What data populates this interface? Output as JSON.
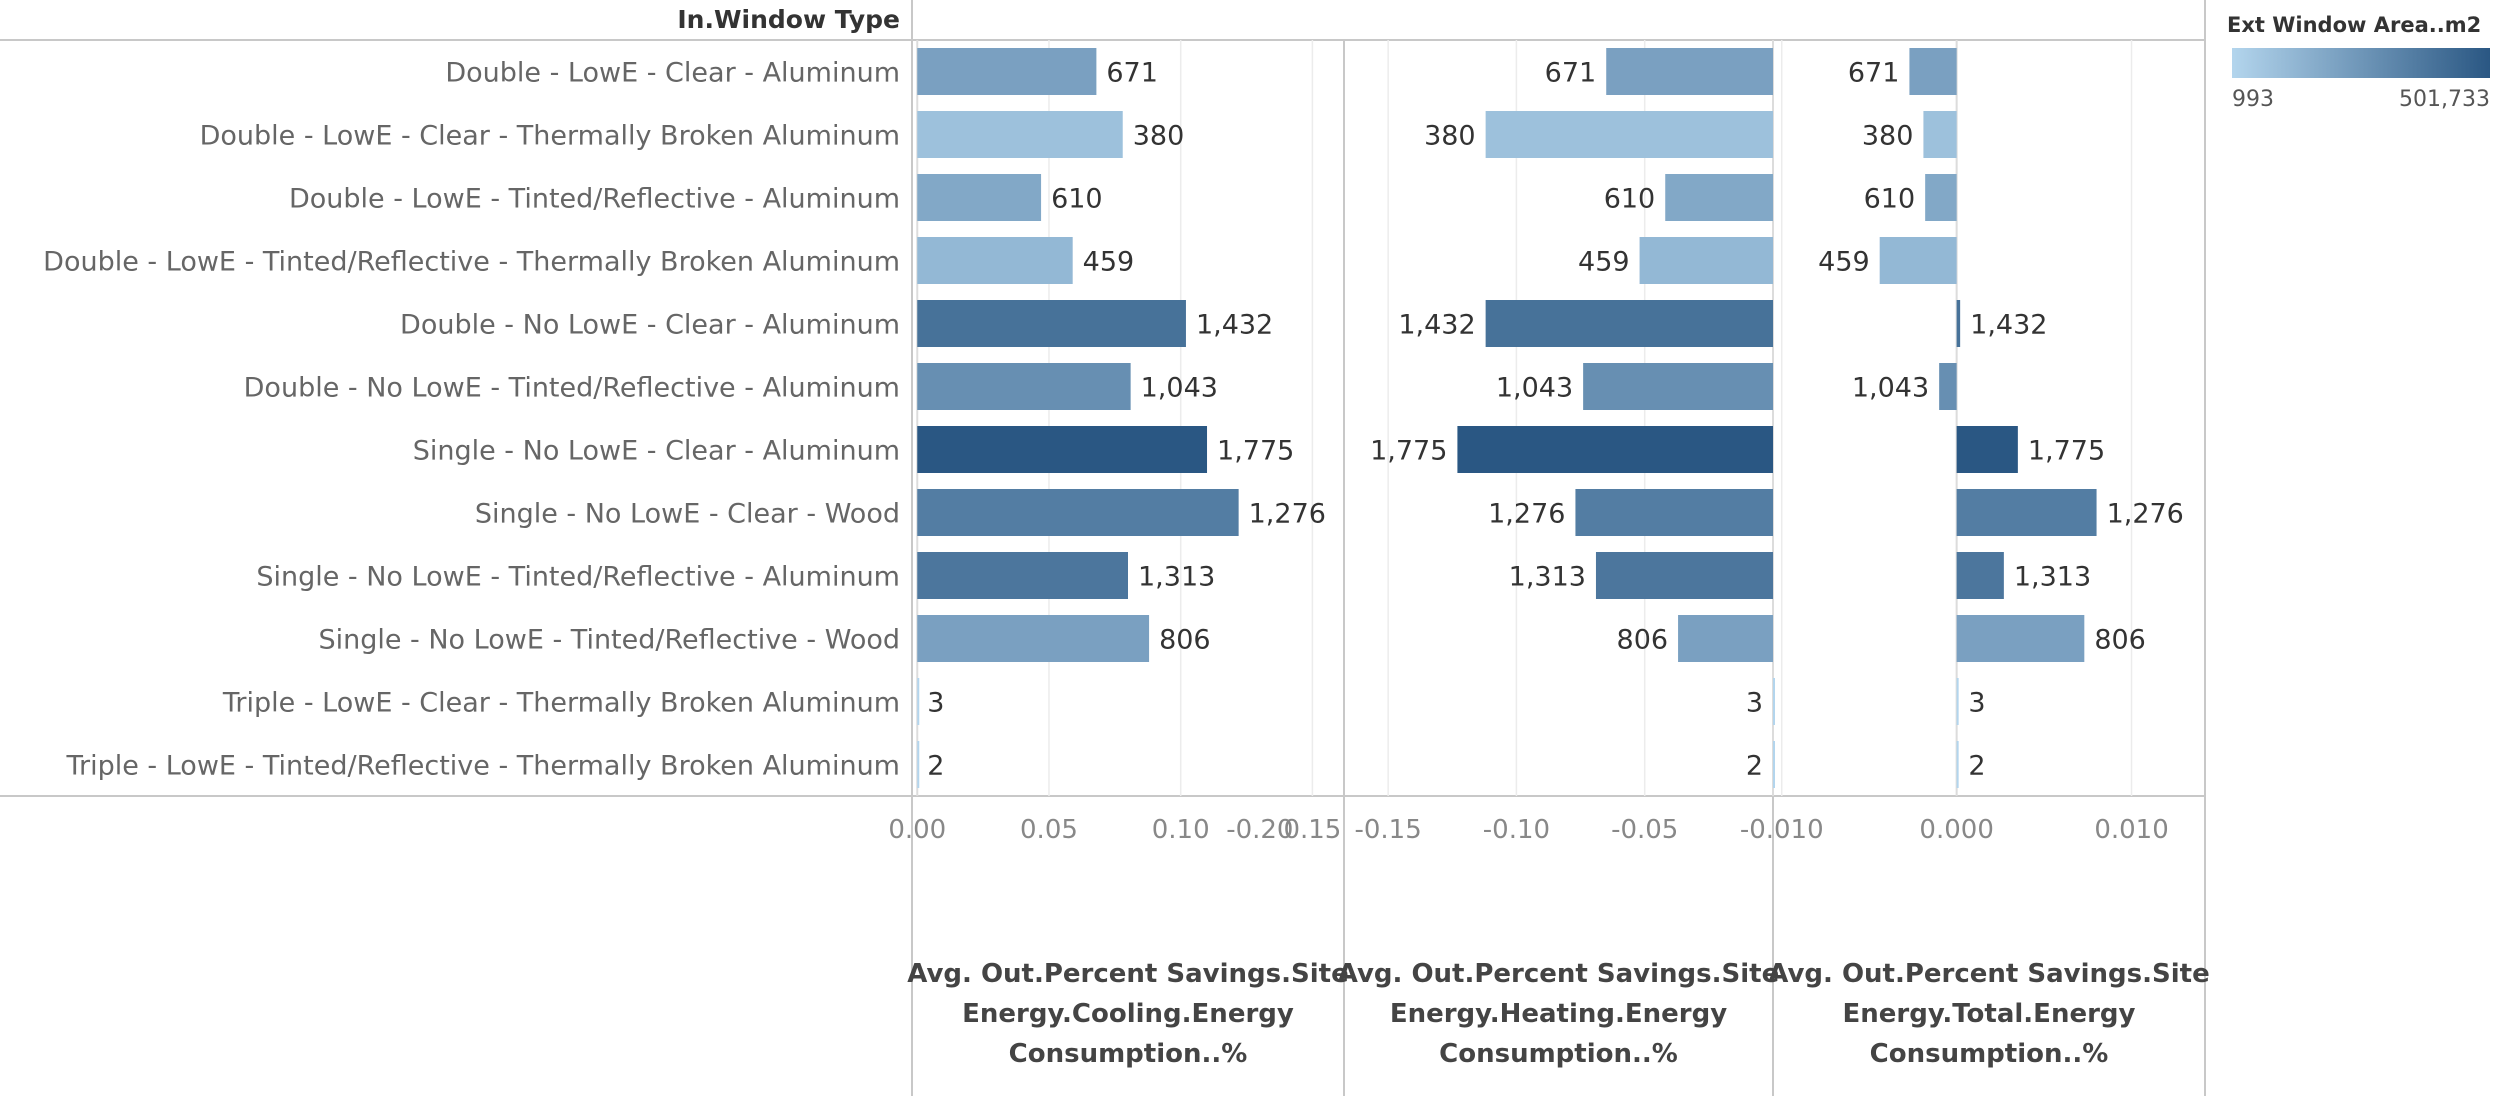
{
  "chart_data": {
    "type": "bar",
    "orientation": "horizontal",
    "row_header": "In.Window Type",
    "categories": [
      "Double - LowE - Clear - Aluminum",
      "Double - LowE - Clear - Thermally Broken Aluminum",
      "Double - LowE - Tinted/Reflective - Aluminum",
      "Double - LowE - Tinted/Reflective - Thermally Broken Aluminum",
      "Double - No LowE - Clear - Aluminum",
      "Double - No LowE - Tinted/Reflective - Aluminum",
      "Single - No LowE - Clear - Aluminum",
      "Single - No LowE - Clear - Wood",
      "Single - No LowE - Tinted/Reflective - Aluminum",
      "Single - No LowE - Tinted/Reflective - Wood",
      "Triple - LowE - Clear - Thermally Broken Aluminum",
      "Triple - LowE - Tinted/Reflective - Thermally Broken Aluminum"
    ],
    "labels": [
      "671",
      "380",
      "610",
      "459",
      "1,432",
      "1,043",
      "1,775",
      "1,276",
      "1,313",
      "806",
      "3",
      "2"
    ],
    "color_values": [
      180000,
      60000,
      150000,
      90000,
      380000,
      250000,
      501733,
      330000,
      360000,
      180000,
      993,
      993
    ],
    "series": [
      {
        "axis_title": [
          "Avg. Out.Percent Savings.Site",
          "Energy.Cooling.Energy",
          "Consumption..%"
        ],
        "values": [
          0.068,
          0.078,
          0.047,
          0.059,
          0.102,
          0.081,
          0.11,
          0.122,
          0.08,
          0.088,
          0.0,
          0.0
        ],
        "xlim": [
          -0.002,
          0.162
        ],
        "ticks": [
          {
            "value": 0.0,
            "label": "0.00"
          },
          {
            "value": 0.05,
            "label": "0.05"
          },
          {
            "value": 0.1,
            "label": "0.10"
          },
          {
            "value": 0.15,
            "label": "0.15"
          }
        ]
      },
      {
        "axis_title": [
          "Avg. Out.Percent Savings.Site",
          "Energy.Heating.Energy",
          "Consumption..%"
        ],
        "values": [
          -0.065,
          -0.112,
          -0.042,
          -0.052,
          -0.112,
          -0.074,
          -0.123,
          -0.077,
          -0.069,
          -0.037,
          0.0,
          0.0
        ],
        "xlim": [
          -0.1672,
          0.0
        ],
        "ticks": [
          {
            "value": -0.2,
            "label": "-0.20"
          },
          {
            "value": -0.15,
            "label": "-0.15"
          },
          {
            "value": -0.1,
            "label": "-0.10"
          },
          {
            "value": -0.05,
            "label": "-0.05"
          }
        ]
      },
      {
        "axis_title": [
          "Avg. Out.Percent Savings.Site",
          "Energy.Total.Energy",
          "Consumption..%"
        ],
        "values": [
          -0.0027,
          -0.0019,
          -0.0018,
          -0.0044,
          0.0002,
          -0.001,
          0.0035,
          0.008,
          0.0027,
          0.0073,
          0.0001,
          0.0001
        ],
        "xlim": [
          -0.0105,
          0.0142
        ],
        "ticks": [
          {
            "value": -0.01,
            "label": "-0.010"
          },
          {
            "value": 0.0,
            "label": "0.000"
          },
          {
            "value": 0.01,
            "label": "0.010"
          }
        ]
      }
    ],
    "legend": {
      "title": "Ext Window Area..m2",
      "min_label": "993",
      "max_label": "501,733",
      "min_value": 993,
      "max_value": 501733,
      "min_color": "#b3d5ed",
      "max_color": "#2a5783",
      "position": "top-right"
    },
    "grid": "vertical"
  }
}
